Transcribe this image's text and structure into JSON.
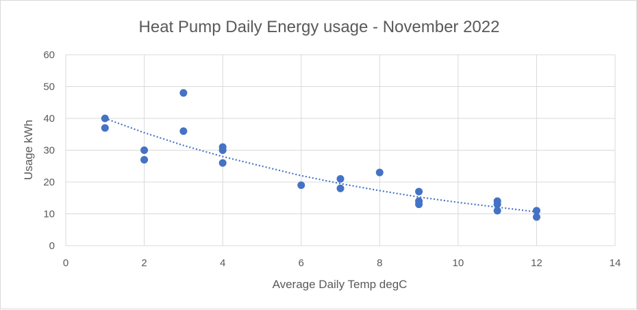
{
  "chart_data": {
    "type": "scatter",
    "title": "Heat Pump Daily Energy usage - November 2022",
    "xlabel": "Average Daily Temp degC",
    "ylabel": "Usage kWh",
    "xlim": [
      0,
      14
    ],
    "ylim": [
      0,
      60
    ],
    "xticks": [
      0,
      2,
      4,
      6,
      8,
      10,
      12,
      14
    ],
    "yticks": [
      0,
      10,
      20,
      30,
      40,
      50,
      60
    ],
    "grid": true,
    "legend": "none",
    "color": "#4472c4",
    "points": [
      {
        "x": 1,
        "y": 40
      },
      {
        "x": 1,
        "y": 37
      },
      {
        "x": 2,
        "y": 30
      },
      {
        "x": 2,
        "y": 27
      },
      {
        "x": 3,
        "y": 48
      },
      {
        "x": 3,
        "y": 36
      },
      {
        "x": 4,
        "y": 31
      },
      {
        "x": 4,
        "y": 30
      },
      {
        "x": 4,
        "y": 26
      },
      {
        "x": 6,
        "y": 19
      },
      {
        "x": 7,
        "y": 21
      },
      {
        "x": 7,
        "y": 18
      },
      {
        "x": 8,
        "y": 23
      },
      {
        "x": 9,
        "y": 17
      },
      {
        "x": 9,
        "y": 14
      },
      {
        "x": 9,
        "y": 13
      },
      {
        "x": 11,
        "y": 14
      },
      {
        "x": 11,
        "y": 13
      },
      {
        "x": 11,
        "y": 11
      },
      {
        "x": 12,
        "y": 11
      },
      {
        "x": 12,
        "y": 9
      }
    ],
    "trendline": {
      "type": "dotted",
      "points": [
        {
          "x": 1,
          "y": 40
        },
        {
          "x": 2,
          "y": 35.5
        },
        {
          "x": 3,
          "y": 31.5
        },
        {
          "x": 4,
          "y": 28
        },
        {
          "x": 5,
          "y": 25
        },
        {
          "x": 6,
          "y": 22
        },
        {
          "x": 7,
          "y": 19.5
        },
        {
          "x": 8,
          "y": 17.3
        },
        {
          "x": 9,
          "y": 15.3
        },
        {
          "x": 10,
          "y": 13.6
        },
        {
          "x": 11,
          "y": 12.1
        },
        {
          "x": 12,
          "y": 10.6
        }
      ]
    }
  }
}
